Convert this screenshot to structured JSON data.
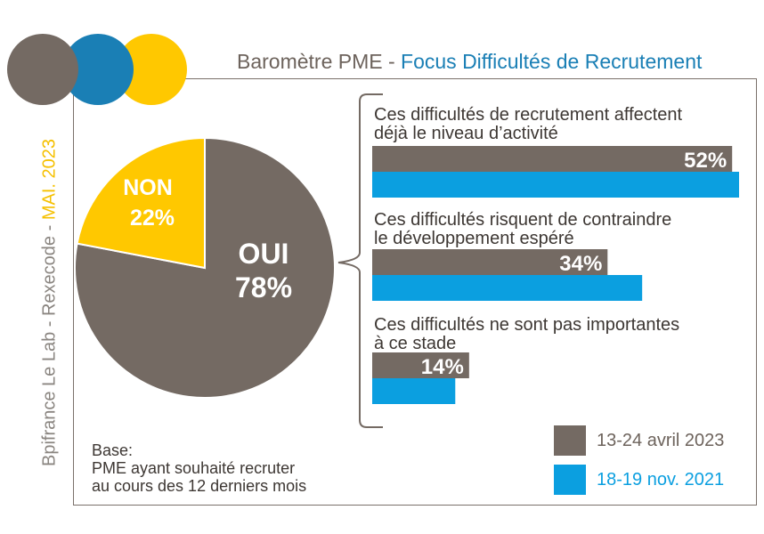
{
  "header": {
    "title_main": "Baromètre PME - ",
    "title_accent": "Focus Difficultés de Recrutement"
  },
  "side": {
    "source": "Bpifrance Le Lab - Rexecode - ",
    "date": "MAI. 2023"
  },
  "colors": {
    "brown": "#746a63",
    "blue": "#0b9fe0",
    "yellow": "#ffc800",
    "logo_blue": "#1a7fb5"
  },
  "base_note": {
    "line1": "Base:",
    "line2": "PME ayant souhaité recruter",
    "line3": "au cours des 12 derniers mois"
  },
  "chart_data": [
    {
      "type": "pie",
      "slices": [
        {
          "label": "OUI",
          "value": 78,
          "value_label": "78%",
          "color": "#746a63"
        },
        {
          "label": "NON",
          "value": 22,
          "value_label": "22%",
          "color": "#ffc800"
        }
      ]
    },
    {
      "type": "bar",
      "orientation": "horizontal",
      "categories": [
        "Ces difficultés de recrutement affectent déjà le niveau d’activité",
        "Ces difficultés risquent de contraindre le développement espéré",
        "Ces difficultés ne sont pas importantes à ce stade"
      ],
      "category_lines": [
        [
          "Ces difficultés de recrutement affectent",
          "déjà le niveau d’activité"
        ],
        [
          "Ces difficultés risquent de contraindre",
          "le développement espéré"
        ],
        [
          "Ces difficultés ne sont pas importantes",
          "à ce stade"
        ]
      ],
      "series": [
        {
          "name": "13-24 avril 2023",
          "color": "#746a63",
          "values": [
            52,
            34,
            14
          ],
          "labels": [
            "52%",
            "34%",
            "14%"
          ]
        },
        {
          "name": "18-19 nov. 2021",
          "color": "#0b9fe0",
          "values": [
            53,
            39,
            12
          ]
        }
      ],
      "xlim": [
        0,
        53
      ],
      "legend": "bottom-right"
    }
  ]
}
